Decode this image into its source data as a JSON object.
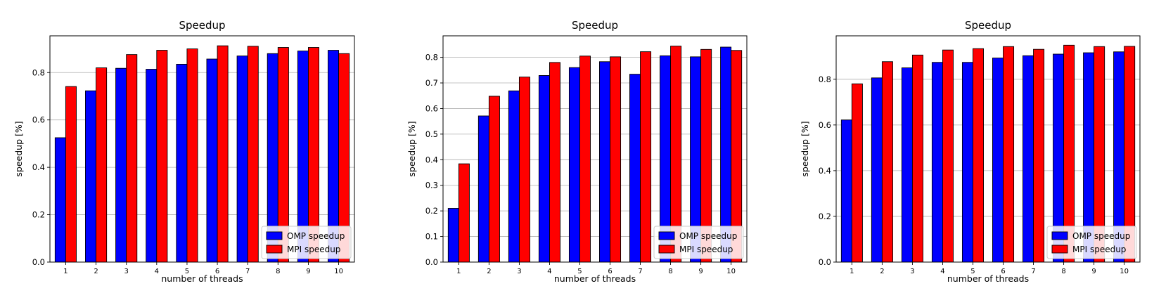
{
  "chart_data": [
    {
      "type": "bar",
      "title": "Speedup",
      "xlabel": "number of threads",
      "ylabel": "speedup [%]",
      "categories": [
        "1",
        "2",
        "3",
        "4",
        "5",
        "6",
        "7",
        "8",
        "9",
        "10"
      ],
      "yticks": [
        0.0,
        0.2,
        0.4,
        0.6,
        0.8
      ],
      "ytick_labels": [
        "0.0",
        "0.2",
        "0.4",
        "0.6",
        "0.8"
      ],
      "ylim": [
        0.0,
        0.955
      ],
      "grid": "y",
      "legend_position": "lower-right",
      "series": [
        {
          "name": "OMP speedup",
          "color": "#0000ff",
          "values": [
            0.525,
            0.723,
            0.818,
            0.814,
            0.835,
            0.857,
            0.87,
            0.88,
            0.891,
            0.894
          ]
        },
        {
          "name": "MPI speedup",
          "color": "#ff0000",
          "values": [
            0.741,
            0.82,
            0.876,
            0.894,
            0.9,
            0.913,
            0.911,
            0.906,
            0.906,
            0.88
          ]
        }
      ]
    },
    {
      "type": "bar",
      "title": "Speedup",
      "xlabel": "number of threads",
      "ylabel": "speedup [%]",
      "categories": [
        "1",
        "2",
        "3",
        "4",
        "5",
        "6",
        "7",
        "8",
        "9",
        "10"
      ],
      "yticks": [
        0.0,
        0.1,
        0.2,
        0.3,
        0.4,
        0.5,
        0.6,
        0.7,
        0.8
      ],
      "ytick_labels": [
        "0.0",
        "0.1",
        "0.2",
        "0.3",
        "0.4",
        "0.5",
        "0.6",
        "0.7",
        "0.8"
      ],
      "ylim": [
        0.0,
        0.884
      ],
      "grid": "y",
      "legend_position": "lower-right",
      "series": [
        {
          "name": "OMP speedup",
          "color": "#0000ff",
          "values": [
            0.21,
            0.571,
            0.669,
            0.729,
            0.76,
            0.783,
            0.734,
            0.806,
            0.802,
            0.84
          ]
        },
        {
          "name": "MPI speedup",
          "color": "#ff0000",
          "values": [
            0.384,
            0.648,
            0.723,
            0.78,
            0.805,
            0.802,
            0.822,
            0.844,
            0.831,
            0.827
          ]
        }
      ]
    },
    {
      "type": "bar",
      "title": "Speedup",
      "xlabel": "number of threads",
      "ylabel": "speedup [%]",
      "categories": [
        "1",
        "2",
        "3",
        "4",
        "5",
        "6",
        "7",
        "8",
        "9",
        "10"
      ],
      "yticks": [
        0.0,
        0.2,
        0.4,
        0.6,
        0.8
      ],
      "ytick_labels": [
        "0.0",
        "0.2",
        "0.4",
        "0.6",
        "0.8"
      ],
      "ylim": [
        0.0,
        0.99
      ],
      "grid": "y",
      "legend_position": "lower-right",
      "series": [
        {
          "name": "OMP speedup",
          "color": "#0000ff",
          "values": [
            0.622,
            0.806,
            0.85,
            0.874,
            0.874,
            0.893,
            0.903,
            0.91,
            0.916,
            0.92
          ]
        },
        {
          "name": "MPI speedup",
          "color": "#ff0000",
          "values": [
            0.78,
            0.877,
            0.906,
            0.928,
            0.934,
            0.943,
            0.931,
            0.949,
            0.943,
            0.944
          ]
        }
      ]
    }
  ]
}
